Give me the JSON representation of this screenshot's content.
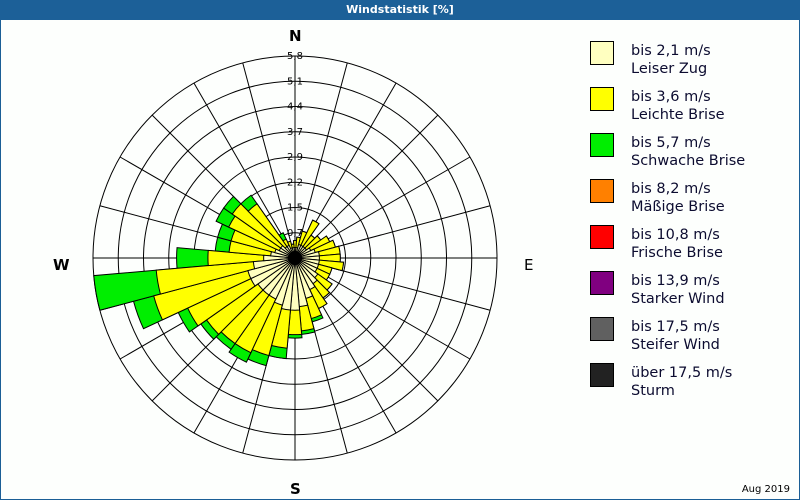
{
  "title": "Windstatistik [%]",
  "footer": {
    "date": "Aug 2019"
  },
  "compass": {
    "north": "N",
    "east": "E",
    "south": "S",
    "west": "W"
  },
  "legend": [
    {
      "range": "bis 2,1 m/s",
      "name": "Leiser Zug",
      "color": "#ffffc0"
    },
    {
      "range": "bis 3,6 m/s",
      "name": "Leichte Brise",
      "color": "#ffff00"
    },
    {
      "range": "bis 5,7 m/s",
      "name": "Schwache Brise",
      "color": "#00ee00"
    },
    {
      "range": "bis 8,2 m/s",
      "name": "Mäßige Brise",
      "color": "#ff8000"
    },
    {
      "range": "bis 10,8 m/s",
      "name": "Frische Brise",
      "color": "#ff0000"
    },
    {
      "range": "bis 13,9 m/s",
      "name": "Starker Wind",
      "color": "#800080"
    },
    {
      "range": "bis 17,5 m/s",
      "name": "Steifer Wind",
      "color": "#606060"
    },
    {
      "range": "über 17,5 m/s",
      "name": "Sturm",
      "color": "#222222"
    }
  ],
  "chart_data": {
    "type": "wind-rose",
    "title": "Windstatistik [%]",
    "unit": "%",
    "ring_labels": [
      "0,7",
      "1,5",
      "2,2",
      "2,9",
      "3,7",
      "4,4",
      "5,1",
      "5,8"
    ],
    "rmax": 5.8,
    "grid_spokes": 24,
    "sector_width_deg": 10,
    "directions_deg": [
      0,
      10,
      20,
      30,
      40,
      50,
      60,
      70,
      80,
      90,
      100,
      110,
      120,
      130,
      140,
      150,
      160,
      170,
      180,
      190,
      200,
      210,
      220,
      230,
      240,
      250,
      260,
      270,
      280,
      290,
      300,
      310,
      320,
      330,
      340,
      350
    ],
    "series": [
      {
        "name": "bis 2,1 m/s (Leiser Zug)",
        "color": "#ffffc0",
        "cumulative": [
          0.3,
          0.3,
          0.4,
          0.4,
          0.4,
          0.4,
          0.5,
          0.6,
          0.7,
          0.7,
          0.7,
          0.7,
          0.7,
          0.8,
          0.9,
          1.0,
          1.2,
          1.4,
          1.5,
          1.5,
          1.4,
          1.3,
          1.3,
          1.3,
          1.4,
          1.4,
          1.2,
          0.9,
          0.7,
          0.6,
          0.5,
          0.5,
          0.4,
          0.4,
          0.3,
          0.3
        ]
      },
      {
        "name": "bis 3,6 m/s (Leichte Brise)",
        "color": "#ffff00",
        "cumulative": [
          0.5,
          0.6,
          0.8,
          1.2,
          0.8,
          0.9,
          1.1,
          1.2,
          1.3,
          1.3,
          1.4,
          1.1,
          1.1,
          1.3,
          1.4,
          1.6,
          1.8,
          2.1,
          2.2,
          2.6,
          2.9,
          3.0,
          3.0,
          3.1,
          3.4,
          4.2,
          4.0,
          2.5,
          1.9,
          1.9,
          2.1,
          2.2,
          1.9,
          0.6,
          0.5,
          0.4
        ]
      },
      {
        "name": "bis 5,7 m/s (Schwache Brise)",
        "color": "#00ee00",
        "cumulative": [
          0.5,
          0.6,
          0.8,
          1.2,
          0.8,
          0.9,
          1.1,
          1.2,
          1.3,
          1.3,
          1.4,
          1.1,
          1.1,
          1.3,
          1.4,
          1.6,
          1.9,
          2.2,
          2.3,
          2.9,
          3.2,
          3.3,
          3.2,
          3.3,
          3.7,
          4.8,
          5.8,
          3.4,
          2.3,
          2.3,
          2.5,
          2.5,
          2.2,
          0.8,
          0.5,
          0.4
        ]
      }
    ],
    "legend_position": "right"
  }
}
